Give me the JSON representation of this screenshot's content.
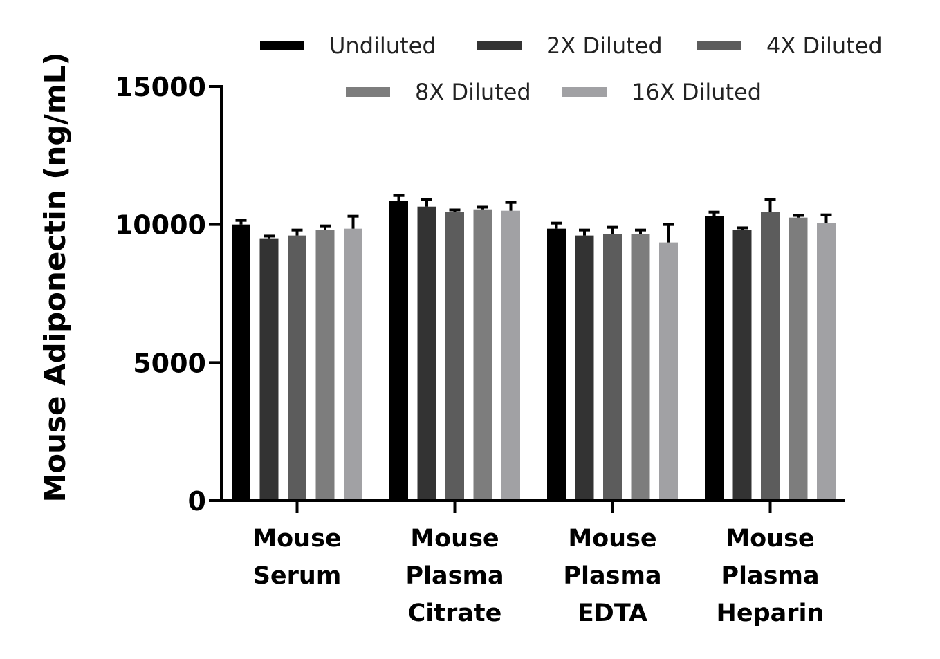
{
  "chart_data": {
    "type": "bar",
    "ylabel": "Mouse Adiponectin (ng/mL)",
    "xlabel": "",
    "ylim": [
      0,
      15000
    ],
    "yticks": [
      0,
      5000,
      10000,
      15000
    ],
    "ytick_labels": [
      "0",
      "5000",
      "10000",
      "15000"
    ],
    "categories": [
      [
        "Mouse",
        "Serum"
      ],
      [
        "Mouse",
        "Plasma",
        "Citrate"
      ],
      [
        "Mouse",
        "Plasma",
        "EDTA"
      ],
      [
        "Mouse",
        "Plasma",
        "Heparin"
      ]
    ],
    "legend_position": "top",
    "series": [
      {
        "name": "Undiluted",
        "color": "#000000",
        "values": [
          10000,
          10850,
          9850,
          10300
        ],
        "errors": [
          150,
          200,
          200,
          150
        ]
      },
      {
        "name": "2X Diluted",
        "color": "#333333",
        "values": [
          9500,
          10650,
          9600,
          9800
        ],
        "errors": [
          80,
          250,
          200,
          80
        ]
      },
      {
        "name": "4X Diluted",
        "color": "#5c5c5c",
        "values": [
          9600,
          10450,
          9650,
          10450
        ],
        "errors": [
          200,
          80,
          250,
          450
        ]
      },
      {
        "name": "8X Diluted",
        "color": "#7d7d7d",
        "values": [
          9800,
          10550,
          9650,
          10250
        ],
        "errors": [
          150,
          80,
          150,
          80
        ]
      },
      {
        "name": "16X Diluted",
        "color": "#a1a1a4",
        "values": [
          9850,
          10500,
          9350,
          10050
        ],
        "errors": [
          450,
          300,
          650,
          300
        ]
      }
    ]
  }
}
